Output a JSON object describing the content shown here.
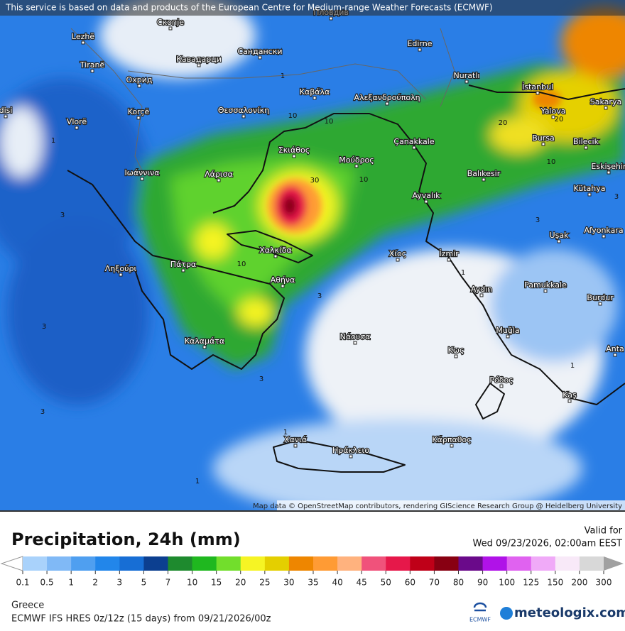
{
  "notice": "This service is based on data and products of the European Centre for Medium-range Weather Forecasts (ECMWF)",
  "map": {
    "places": [
      "Пловдив",
      "Скопје",
      "Lezhë",
      "Edirne",
      "Tiranë",
      "Кавадарци",
      "Сандански",
      "Охрид",
      "Nuratlı",
      "İstanbul",
      "Καβάλα",
      "Αλεξανδρούπολη",
      "Korçë",
      "Θεσσαλονίκη",
      "Yalova",
      "Sakarya",
      "Vlorë",
      "disi",
      "Çanakkale",
      "Bursa",
      "Bilecik",
      "Σκιάθος",
      "Μούδρος",
      "Ιωάννινα",
      "Λάρισα",
      "Balıkesir",
      "Eskişehir",
      "Kütahya",
      "Ayvalık",
      "Afyonkara",
      "Uşak",
      "Χίος",
      "İzmir",
      "Χαλκίδα",
      "Ληξούρι",
      "Πάτρα",
      "Αθήνα",
      "Aydın",
      "Pamukkale",
      "Burdur",
      "Νάουσα",
      "Muğla",
      "Καλαμάτα",
      "Κως",
      "Anta",
      "Ρόδος",
      "Kaş",
      "Χανιά",
      "Ηράκλειο",
      "Κάρπαθος"
    ],
    "contour_labels": [
      1,
      3,
      3,
      3,
      10,
      10,
      30,
      10,
      10,
      3,
      1,
      20,
      20,
      10,
      3,
      1,
      1,
      3,
      1,
      3,
      1
    ],
    "attribution": "Map data © OpenStreetMap contributors, rendering GIScience Research Group @ Heidelberg University"
  },
  "title": "Precipitation, 24h (mm)",
  "valid_label": "Valid for",
  "valid_time": "Wed 09/23/2026, 02:00am EEST",
  "legend": {
    "ticks": [
      "0.1",
      "0.5",
      "1",
      "2",
      "3",
      "5",
      "7",
      "10",
      "15",
      "20",
      "25",
      "30",
      "35",
      "40",
      "45",
      "50",
      "60",
      "70",
      "80",
      "90",
      "100",
      "125",
      "150",
      "200",
      "300"
    ],
    "colors": [
      "#a9d2fb",
      "#80b9f6",
      "#4f9ff0",
      "#2286ea",
      "#176ed5",
      "#0c3f90",
      "#1e8a2e",
      "#1fb81f",
      "#72de2c",
      "#f6f424",
      "#e4cf00",
      "#ee8600",
      "#ff9b34",
      "#ffb27e",
      "#f0527b",
      "#e6184a",
      "#bf0018",
      "#880012",
      "#6a0a8a",
      "#b012e8",
      "#e062f0",
      "#f0aaf8",
      "#f8e9f8",
      "#d8d8d8"
    ],
    "under_color": "#ffffff",
    "over_color": "#a0a0a0"
  },
  "region": "Greece",
  "model": "ECMWF IFS HRES 0z/12z (15 days) from 09/21/2026/00z",
  "logos": {
    "ecmwf": "ECMWF",
    "brand": "meteologix.com"
  }
}
